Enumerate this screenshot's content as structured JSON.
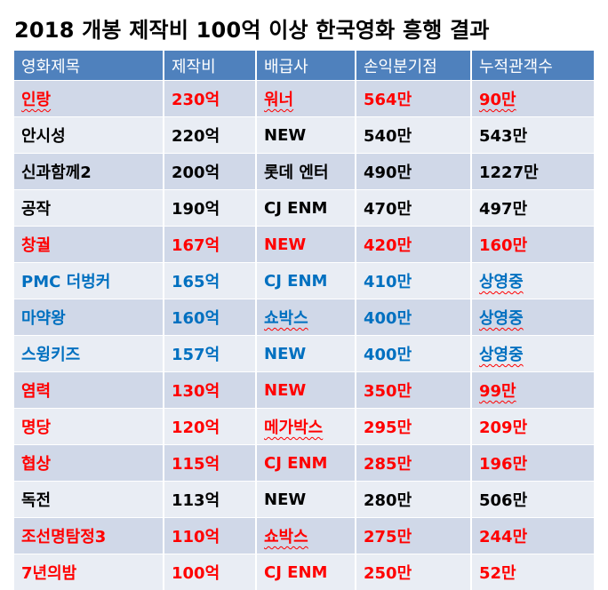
{
  "title": "2018 개봉 제작비 100억 이상 한국영화 흥행 결과",
  "headers": [
    "영화제목",
    "제작비",
    "배급사",
    "손익분기점",
    "누적관객수"
  ],
  "colors": {
    "header_bg": "#4F81BD",
    "row_odd": "#D0D8E8",
    "row_even": "#E9EDF4",
    "red": "#FF0000",
    "black": "#000000",
    "blue": "#0070C0"
  },
  "rows": [
    {
      "title": "인랑",
      "budget": "230억",
      "distributor": "워너",
      "breakeven": "564만",
      "audience": "90만",
      "color": "red"
    },
    {
      "title": "안시성",
      "budget": "220억",
      "distributor": "NEW",
      "breakeven": "540만",
      "audience": "543만",
      "color": "black"
    },
    {
      "title": "신과함께2",
      "budget": "200억",
      "distributor": "롯데 엔터",
      "breakeven": "490만",
      "audience": "1227만",
      "color": "black"
    },
    {
      "title": "공작",
      "budget": "190억",
      "distributor": "CJ ENM",
      "breakeven": "470만",
      "audience": "497만",
      "color": "black"
    },
    {
      "title": "창궐",
      "budget": "167억",
      "distributor": "NEW",
      "breakeven": "420만",
      "audience": "160만",
      "color": "red"
    },
    {
      "title": "PMC 더벙커",
      "budget": "165억",
      "distributor": "CJ ENM",
      "breakeven": "410만",
      "audience": "상영중",
      "color": "blue"
    },
    {
      "title": "마약왕",
      "budget": "160억",
      "distributor": "쇼박스",
      "breakeven": "400만",
      "audience": "상영중",
      "color": "blue"
    },
    {
      "title": "스윙키즈",
      "budget": "157억",
      "distributor": "NEW",
      "breakeven": "400만",
      "audience": "상영중",
      "color": "blue"
    },
    {
      "title": "염력",
      "budget": "130억",
      "distributor": "NEW",
      "breakeven": "350만",
      "audience": "99만",
      "color": "red"
    },
    {
      "title": "명당",
      "budget": "120억",
      "distributor": "메가박스",
      "breakeven": "295만",
      "audience": "209만",
      "color": "red"
    },
    {
      "title": "협상",
      "budget": "115억",
      "distributor": "CJ ENM",
      "breakeven": "285만",
      "audience": "196만",
      "color": "red"
    },
    {
      "title": "독전",
      "budget": "113억",
      "distributor": "NEW",
      "breakeven": "280만",
      "audience": "506만",
      "color": "black"
    },
    {
      "title": "조선명탐정3",
      "budget": "110억",
      "distributor": "쇼박스",
      "breakeven": "275만",
      "audience": "244만",
      "color": "red"
    },
    {
      "title": "7년의밤",
      "budget": "100억",
      "distributor": "CJ ENM",
      "breakeven": "250만",
      "audience": "52만",
      "color": "red"
    }
  ]
}
